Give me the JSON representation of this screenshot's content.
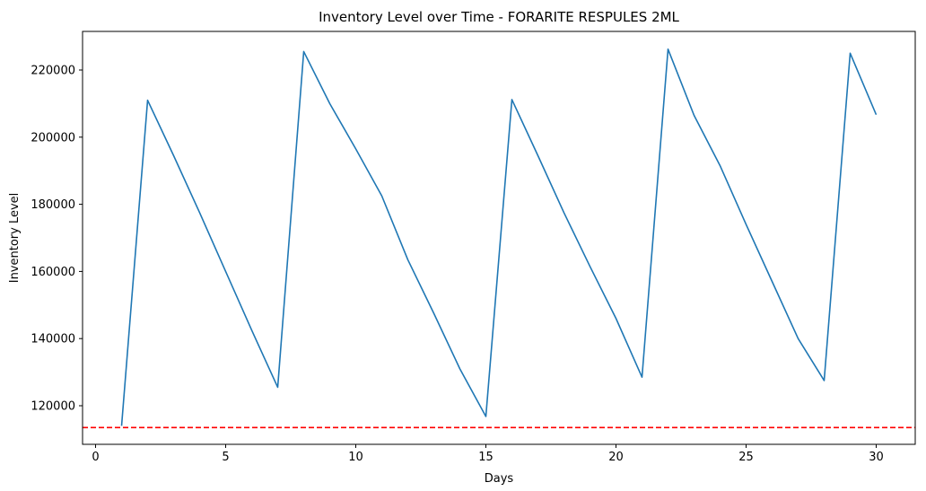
{
  "chart_data": {
    "type": "line",
    "title": "Inventory Level over Time - FORARITE RESPULES 2ML",
    "xlabel": "Days",
    "ylabel": "Inventory Level",
    "xlim": [
      -0.5,
      31.5
    ],
    "ylim": [
      108500,
      231500
    ],
    "xticks": [
      0,
      5,
      10,
      15,
      20,
      25,
      30
    ],
    "xtick_labels": [
      "0",
      "5",
      "10",
      "15",
      "20",
      "25",
      "30"
    ],
    "yticks": [
      120000,
      140000,
      160000,
      180000,
      200000,
      220000
    ],
    "ytick_labels": [
      "120000",
      "140000",
      "160000",
      "180000",
      "200000",
      "220000"
    ],
    "grid": false,
    "series": [
      {
        "color": "#1f77b4",
        "x": [
          1,
          2,
          3,
          4,
          5,
          6,
          7,
          8,
          9,
          10,
          11,
          12,
          13,
          14,
          15,
          16,
          17,
          18,
          19,
          20,
          21,
          22,
          23,
          24,
          25,
          26,
          27,
          28,
          29,
          30
        ],
        "values": [
          114000,
          211000,
          194500,
          177500,
          160000,
          142500,
          125500,
          225500,
          210000,
          196500,
          182500,
          163500,
          147500,
          131000,
          116800,
          211200,
          194500,
          177500,
          161500,
          146000,
          128500,
          226200,
          206500,
          191500,
          174000,
          157000,
          140000,
          127500,
          225000,
          206700
        ]
      }
    ],
    "reference_line": {
      "y": 113500,
      "color": "#ff0000",
      "style": "dashed"
    }
  }
}
